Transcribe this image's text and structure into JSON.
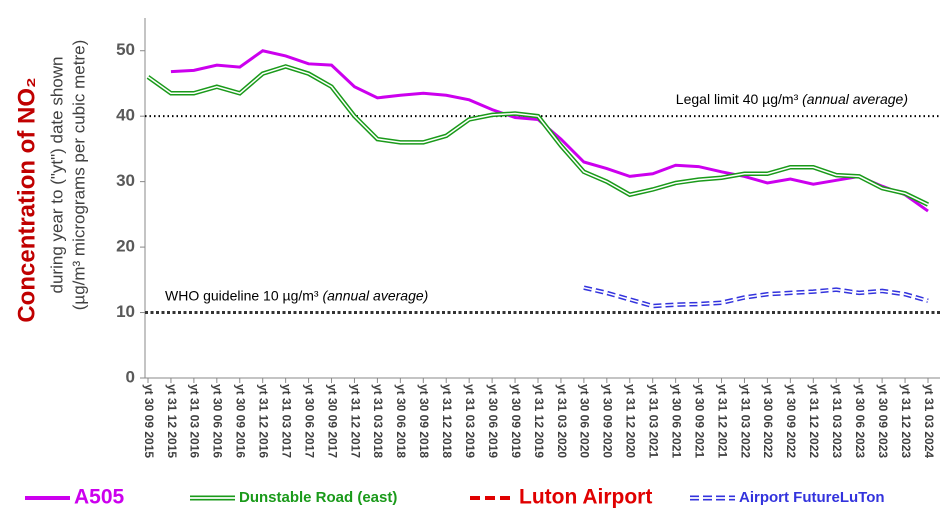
{
  "chart_data": {
    "type": "line",
    "y_title": "Concentration of NO₂",
    "y_subtitle": [
      "during year to (\"yt\") date shown",
      "(µg/m³ micrograms per cubic metre)"
    ],
    "categories": [
      "yt 30 09 2015",
      "yt 31 12 2015",
      "yt 31 03 2016",
      "yt 30 06 2016",
      "yt 30 09 2016",
      "yt 31 12 2016",
      "yt 31 03 2017",
      "yt 30 06 2017",
      "yt 30 09 2017",
      "yt 31 12 2017",
      "yt 31 03 2018",
      "yt 30 06 2018",
      "yt 30 09 2018",
      "yt 31 12 2018",
      "yt 31 03 2019",
      "yt 30 06 2019",
      "yt 30 09 2019",
      "yt 31 12 2019",
      "yt 31 03 2020",
      "yt 30 06 2020",
      "yt 30 09 2020",
      "yt 31 12 2020",
      "yt 31 03 2021",
      "yt 30 06 2021",
      "yt 30 09 2021",
      "yt 31 12 2021",
      "yt 31 03 2022",
      "yt 30 06 2022",
      "yt 30 09 2022",
      "yt 31 12 2022",
      "yt 31 03 2023",
      "yt 30 06 2023",
      "yt 30 09 2023",
      "yt 31 12 2023",
      "yt 31 03 2024"
    ],
    "series": [
      {
        "name": "A505",
        "color": "#cc00ee",
        "style": "solid",
        "values": [
          null,
          46.8,
          47.0,
          47.8,
          47.5,
          50.0,
          49.2,
          48.0,
          47.8,
          44.5,
          42.8,
          43.2,
          43.5,
          43.2,
          42.5,
          41.0,
          39.8,
          39.5,
          36.5,
          33.0,
          32.0,
          30.8,
          31.2,
          32.5,
          32.3,
          31.5,
          30.8,
          29.8,
          30.4,
          29.6,
          30.2,
          30.8,
          29.3,
          28.0,
          25.5
        ]
      },
      {
        "name": "Dunstable Road (east)",
        "color": "#1a9a1a",
        "style": "double",
        "values": [
          46.0,
          43.5,
          43.5,
          44.5,
          43.5,
          46.5,
          47.6,
          46.5,
          44.5,
          40.0,
          36.5,
          36.0,
          36.0,
          37.0,
          39.5,
          40.2,
          40.4,
          40.0,
          35.5,
          31.5,
          30.0,
          28.0,
          28.8,
          29.8,
          30.3,
          30.6,
          31.2,
          31.2,
          32.2,
          32.2,
          31.0,
          30.8,
          29.0,
          28.2,
          26.5
        ]
      },
      {
        "name": "Luton Airport",
        "color": "#e00000",
        "style": "dashed",
        "values": [
          null,
          null,
          null,
          null,
          null,
          null,
          null,
          null,
          null,
          null,
          null,
          null,
          null,
          null,
          null,
          null,
          null,
          null,
          null,
          null,
          null,
          null,
          null,
          null,
          null,
          null,
          null,
          null,
          null,
          null,
          null,
          null,
          null,
          null,
          null
        ]
      },
      {
        "name": "Airport FutureLuTon",
        "color": "#3333dd",
        "style": "double-dashed",
        "values": [
          null,
          null,
          null,
          null,
          null,
          null,
          null,
          null,
          null,
          null,
          null,
          null,
          null,
          null,
          null,
          null,
          null,
          null,
          null,
          13.8,
          13.0,
          12.0,
          11.0,
          11.2,
          11.3,
          11.5,
          12.3,
          12.8,
          13.0,
          13.2,
          13.5,
          13.0,
          13.3,
          12.8,
          11.8
        ]
      }
    ],
    "reference_lines": [
      {
        "value": 40,
        "label": "Legal limit 40 µg/m³",
        "note": "(annual average)",
        "style": "dots"
      },
      {
        "value": 10,
        "label": "WHO guideline 10 µg/m³",
        "note": "(annual average)",
        "style": "diamonds"
      }
    ],
    "ylim": [
      0,
      55
    ],
    "yticks": [
      0,
      10,
      20,
      30,
      40,
      50
    ],
    "legend": "bottom"
  }
}
